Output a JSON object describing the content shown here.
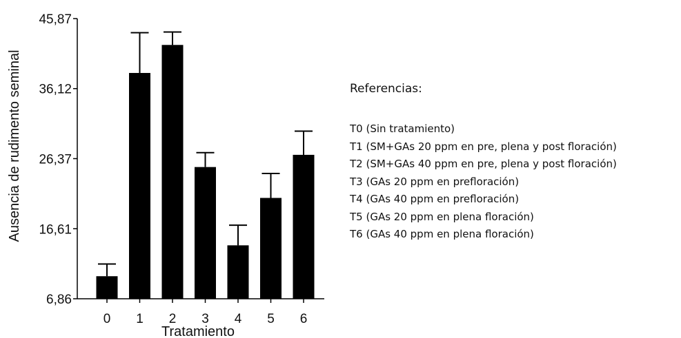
{
  "chart_data": {
    "type": "bar",
    "ylabel": "Ausencia de rudimento seminal",
    "xlabel": "Tratamiento",
    "ylim": [
      6.86,
      45.87
    ],
    "y_ticks": [
      "6,86",
      "16,61",
      "26,37",
      "36,12",
      "45,87"
    ],
    "y_tick_values": [
      6.86,
      16.61,
      26.37,
      36.12,
      45.87
    ],
    "categories": [
      "0",
      "1",
      "2",
      "3",
      "4",
      "5",
      "6"
    ],
    "values": [
      10.0,
      38.3,
      42.2,
      25.2,
      14.3,
      20.9,
      26.9
    ],
    "error_upper": [
      11.7,
      43.9,
      44.0,
      27.2,
      17.1,
      24.3,
      30.2
    ],
    "bar_color": "#000000",
    "grid": false,
    "legend_placement": "right"
  },
  "references": {
    "title": "Referencias:",
    "items": [
      "T0 (Sin tratamiento)",
      "T1 (SM+GAs 20 ppm en pre, plena y post floración)",
      "T2 (SM+GAs 40 ppm en pre, plena y post floración)",
      "T3 (GAs 20 ppm en prefloración)",
      "T4 (GAs 40 ppm en prefloración)",
      "T5 (GAs 20 ppm en plena floración)",
      "T6 (GAs 40 ppm en plena floración)"
    ]
  }
}
